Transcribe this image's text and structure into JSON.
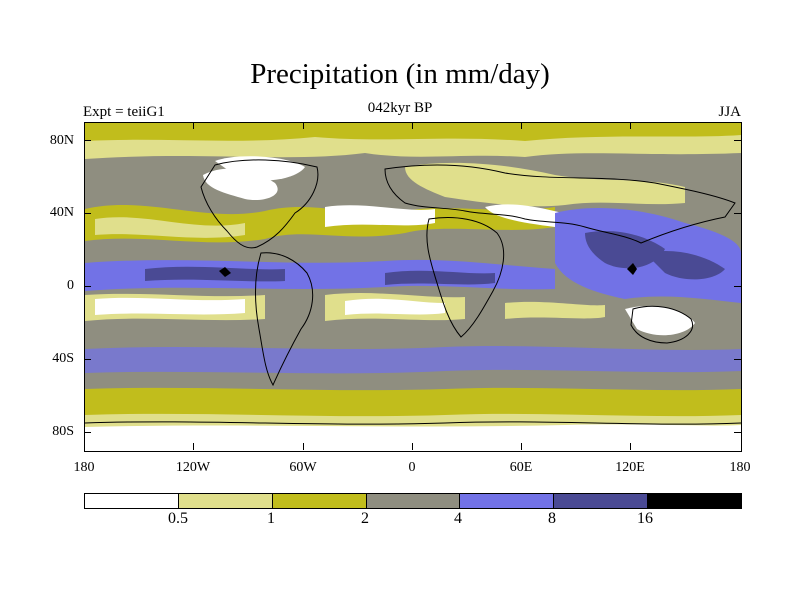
{
  "title": "Precipitation (in mm/day)",
  "subtitle": {
    "left": "Expt = teiiG1",
    "center": "042kyr BP",
    "right": "JJA"
  },
  "axes": {
    "lat_labels": [
      "80N",
      "40N",
      "0",
      "40S",
      "80S"
    ],
    "lon_labels": [
      "180",
      "120W",
      "60W",
      "0",
      "60E",
      "120E",
      "180"
    ]
  },
  "colorbar": {
    "colors": [
      "#ffffff",
      "#e0df8c",
      "#c1bd1c",
      "#8f8e80",
      "#7272e6",
      "#4a4a94",
      "#000000"
    ],
    "labels": [
      "0.5",
      "1",
      "2",
      "4",
      "8",
      "16"
    ]
  },
  "chart_data": {
    "type": "heatmap",
    "title": "Precipitation (in mm/day)",
    "variable": "Precipitation",
    "units": "mm/day",
    "xlim": [
      -180,
      180
    ],
    "ylim": [
      -90,
      90
    ],
    "levels": [
      0.5,
      1,
      2,
      4,
      8,
      16
    ]
  }
}
